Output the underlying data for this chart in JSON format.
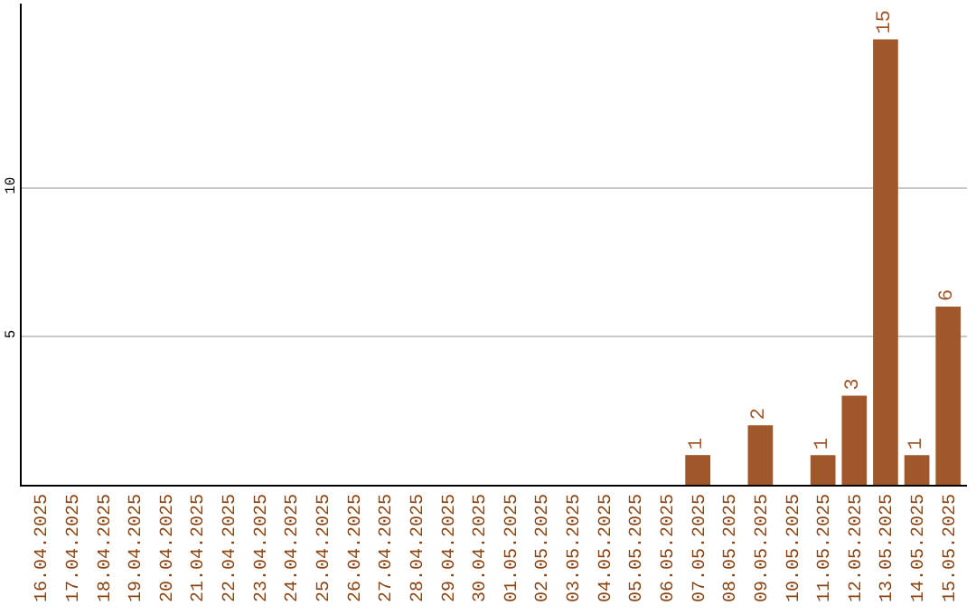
{
  "chart_data": {
    "type": "bar",
    "categories": [
      "16.04.2025",
      "17.04.2025",
      "18.04.2025",
      "19.04.2025",
      "20.04.2025",
      "21.04.2025",
      "22.04.2025",
      "23.04.2025",
      "24.04.2025",
      "25.04.2025",
      "26.04.2025",
      "27.04.2025",
      "28.04.2025",
      "29.04.2025",
      "30.04.2025",
      "01.05.2025",
      "02.05.2025",
      "03.05.2025",
      "04.05.2025",
      "05.05.2025",
      "06.05.2025",
      "07.05.2025",
      "08.05.2025",
      "09.05.2025",
      "10.05.2025",
      "11.05.2025",
      "12.05.2025",
      "13.05.2025",
      "14.05.2025",
      "15.05.2025"
    ],
    "values": [
      0,
      0,
      0,
      0,
      0,
      0,
      0,
      0,
      0,
      0,
      0,
      0,
      0,
      0,
      0,
      0,
      0,
      0,
      0,
      0,
      0,
      1,
      0,
      2,
      0,
      1,
      3,
      15,
      1,
      6
    ],
    "value_labels": [
      null,
      null,
      null,
      null,
      null,
      null,
      null,
      null,
      null,
      null,
      null,
      null,
      null,
      null,
      null,
      null,
      null,
      null,
      null,
      null,
      null,
      "1",
      null,
      "2",
      null,
      "1",
      "3",
      "15",
      "1",
      "6"
    ],
    "color": "#a0582a",
    "ylim": [
      0,
      16.2
    ],
    "yticks": [
      5,
      10
    ],
    "grid": "y",
    "legend": false
  }
}
